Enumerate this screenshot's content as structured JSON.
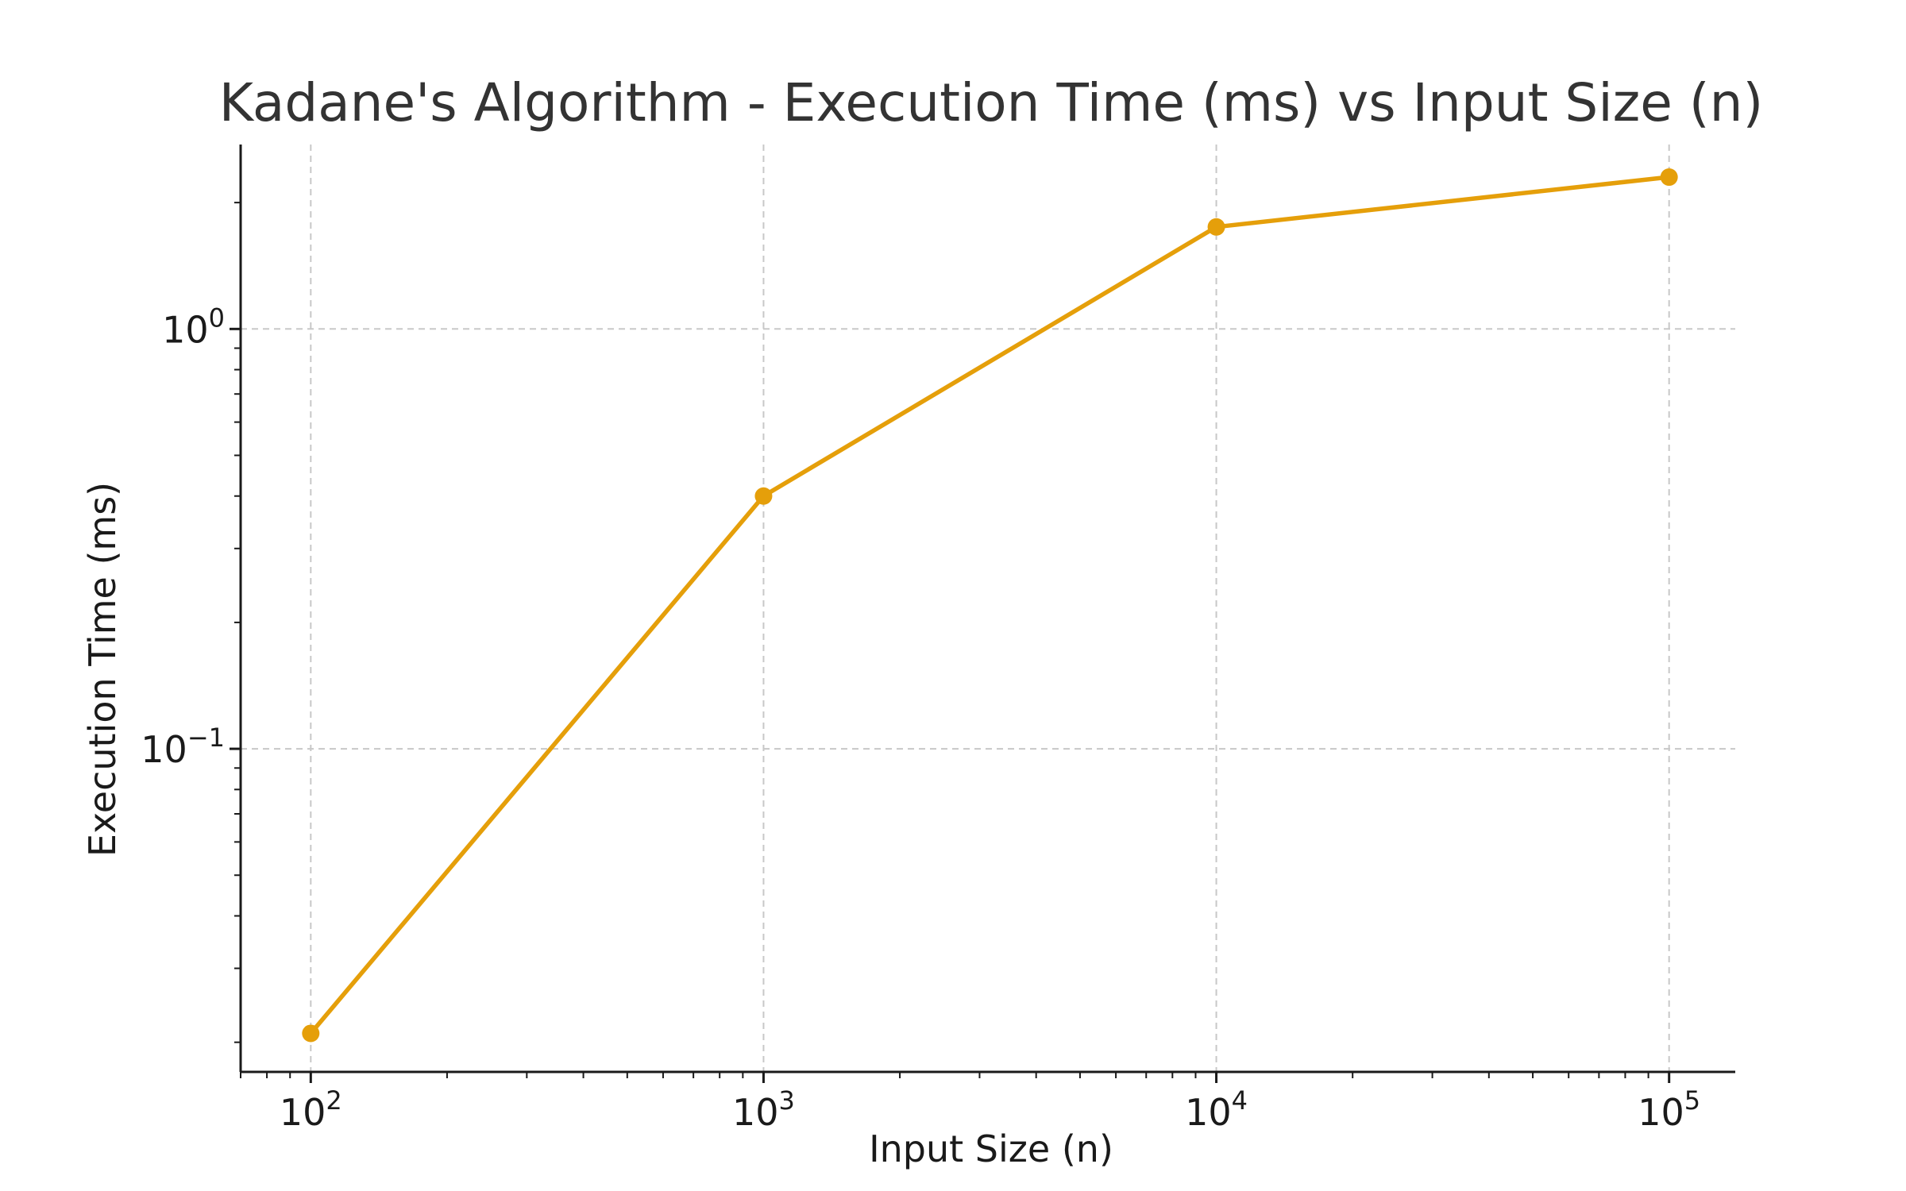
{
  "chart_data": {
    "type": "line",
    "title": "Kadane's Algorithm - Execution Time (ms) vs Input Size (n)",
    "xlabel": "Input Size (n)",
    "ylabel": "Execution Time (ms)",
    "x_scale": "log",
    "y_scale": "log",
    "xlim": [
      70,
      140000
    ],
    "ylim": [
      0.017,
      2.75
    ],
    "x_ticks": [
      {
        "value": 100,
        "base": "10",
        "exp": "2"
      },
      {
        "value": 1000,
        "base": "10",
        "exp": "3"
      },
      {
        "value": 10000,
        "base": "10",
        "exp": "4"
      },
      {
        "value": 100000,
        "base": "10",
        "exp": "5"
      }
    ],
    "y_ticks": [
      {
        "value": 0.1,
        "base": "10",
        "exp": "−1"
      },
      {
        "value": 1,
        "base": "10",
        "exp": "0"
      }
    ],
    "grid": true,
    "series": [
      {
        "color": "#E59F0A",
        "marker": "circle",
        "x": [
          100,
          1000,
          10000,
          100000
        ],
        "values": [
          0.021,
          0.4,
          1.75,
          2.3
        ]
      }
    ]
  }
}
